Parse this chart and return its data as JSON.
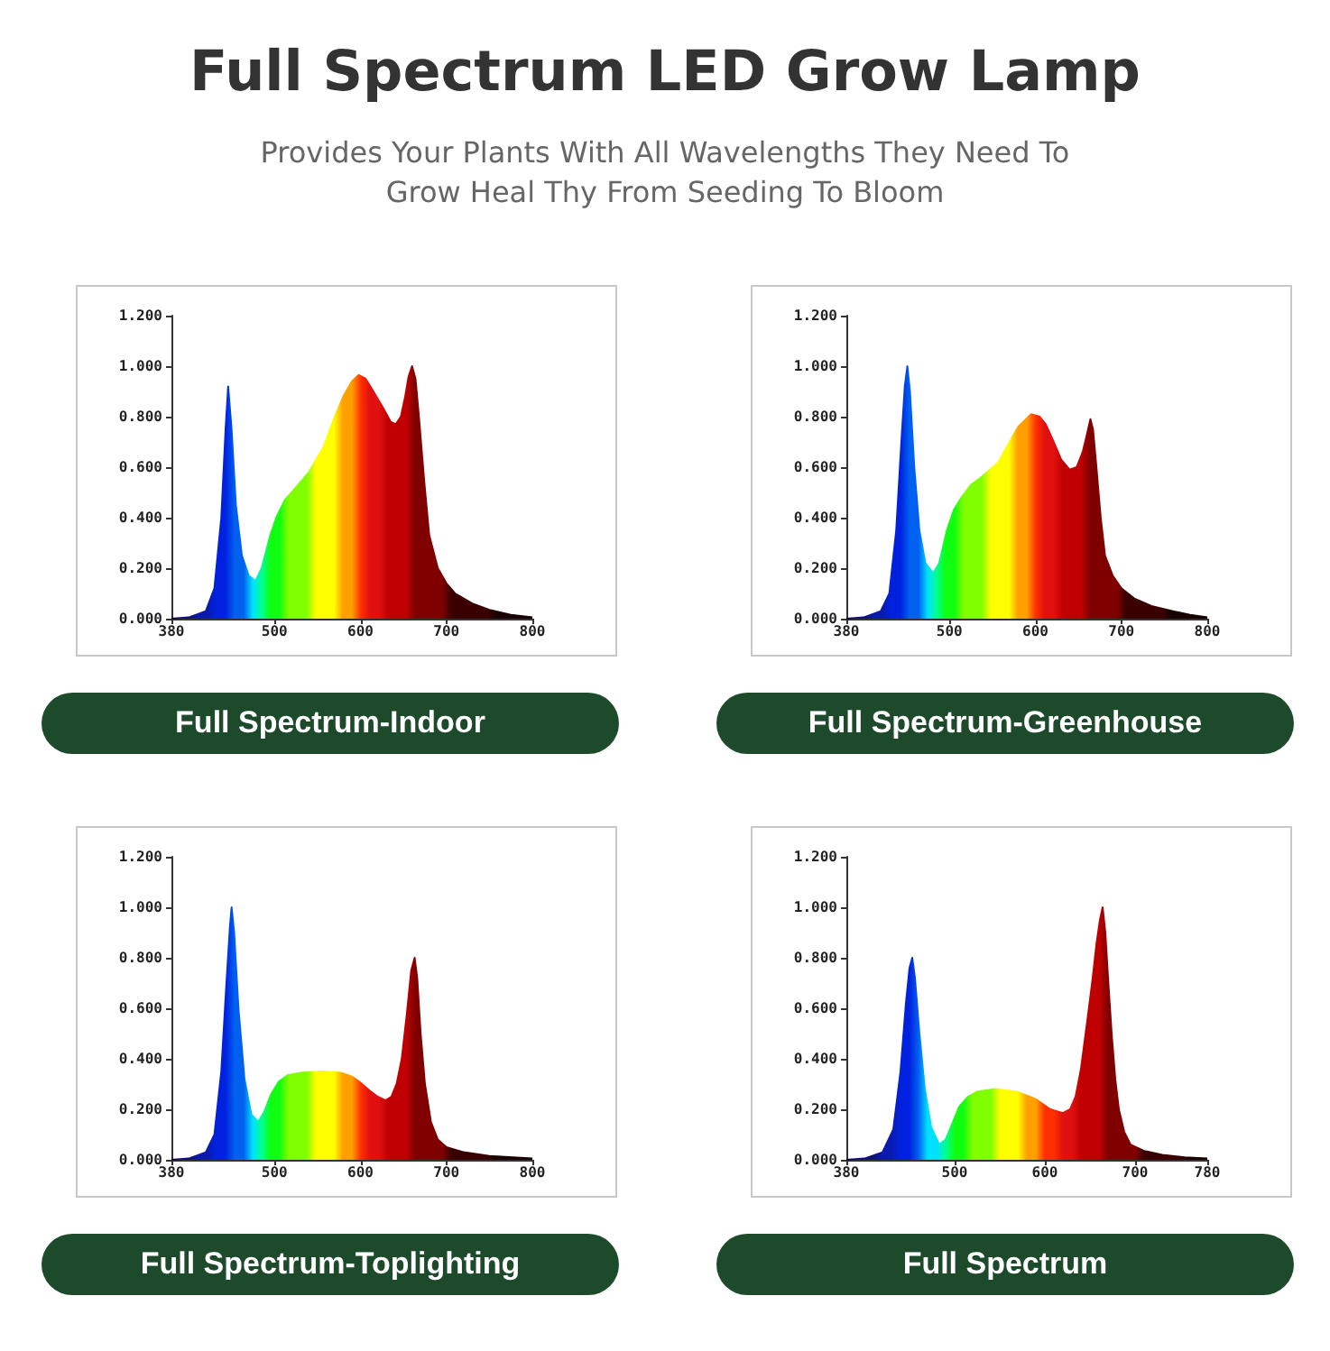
{
  "chart_data": [
    {
      "type": "area",
      "title": "Full Spectrum LED Grow Lamp",
      "subtitle": "Provides Your Plants With All Wavelengths They Need To Grow Heal Thy From Seeding To Bloom",
      "annotations": [
        "Full Spectrum-Indoor"
      ],
      "grid": false,
      "xlim": [
        380,
        800
      ],
      "xticks": [
        380,
        500,
        600,
        700,
        800
      ],
      "ylim": [
        0,
        1.2
      ],
      "yticks": [
        {
          "value": 0,
          "label": "0.000"
        },
        {
          "value": 0.2,
          "label": "0.200"
        },
        {
          "value": 0.4,
          "label": "0.400"
        },
        {
          "value": 0.6,
          "label": "0.600"
        },
        {
          "value": 0.8,
          "label": "0.800"
        },
        {
          "value": 1,
          "label": "1.000"
        },
        {
          "value": 1.2,
          "label": "1.200"
        }
      ],
      "x": [
        380,
        400,
        420,
        430,
        438,
        443,
        446,
        450,
        455,
        462,
        470,
        478,
        485,
        495,
        502,
        512,
        525,
        540,
        557,
        570,
        580,
        590,
        598,
        606,
        615,
        627,
        635,
        641,
        647,
        652,
        656,
        660,
        664,
        668,
        674,
        680,
        690,
        700,
        710,
        730,
        750,
        775,
        800
      ],
      "values": [
        0,
        0.005,
        0.03,
        0.12,
        0.4,
        0.75,
        0.92,
        0.75,
        0.45,
        0.25,
        0.17,
        0.15,
        0.2,
        0.33,
        0.4,
        0.47,
        0.52,
        0.58,
        0.68,
        0.8,
        0.88,
        0.94,
        0.965,
        0.95,
        0.9,
        0.83,
        0.78,
        0.77,
        0.8,
        0.88,
        0.96,
        1.0,
        0.95,
        0.8,
        0.55,
        0.33,
        0.2,
        0.14,
        0.1,
        0.06,
        0.035,
        0.015,
        0.005
      ]
    },
    {
      "type": "area",
      "annotations": [
        "Full Spectrum-Greenhouse"
      ],
      "grid": false,
      "xlim": [
        380,
        800
      ],
      "xticks": [
        380,
        500,
        600,
        700,
        800
      ],
      "ylim": [
        0,
        1.2
      ],
      "yticks": [
        {
          "value": 0,
          "label": "0.000"
        },
        {
          "value": 0.2,
          "label": "0.200"
        },
        {
          "value": 0.4,
          "label": "0.400"
        },
        {
          "value": 0.6,
          "label": "0.600"
        },
        {
          "value": 0.8,
          "label": "0.800"
        },
        {
          "value": 1,
          "label": "1.000"
        },
        {
          "value": 1.2,
          "label": "1.200"
        }
      ],
      "x": [
        380,
        400,
        420,
        430,
        438,
        444,
        448,
        451,
        454,
        459,
        465,
        472,
        481,
        488,
        497,
        505,
        512,
        525,
        537,
        557,
        570,
        580,
        595,
        605,
        612,
        620,
        630,
        640,
        648,
        655,
        660,
        664,
        667,
        671,
        676,
        681,
        690,
        700,
        715,
        735,
        760,
        780,
        800
      ],
      "values": [
        0,
        0.005,
        0.03,
        0.1,
        0.35,
        0.7,
        0.92,
        1.0,
        0.9,
        0.6,
        0.35,
        0.22,
        0.18,
        0.22,
        0.35,
        0.43,
        0.47,
        0.53,
        0.56,
        0.62,
        0.7,
        0.76,
        0.81,
        0.8,
        0.77,
        0.71,
        0.63,
        0.59,
        0.6,
        0.66,
        0.73,
        0.79,
        0.75,
        0.6,
        0.4,
        0.25,
        0.17,
        0.12,
        0.08,
        0.05,
        0.03,
        0.015,
        0.005
      ]
    },
    {
      "type": "area",
      "annotations": [
        "Full Spectrum-Toplighting"
      ],
      "grid": false,
      "xlim": [
        380,
        800
      ],
      "xticks": [
        380,
        500,
        600,
        700,
        800
      ],
      "ylim": [
        0,
        1.2
      ],
      "yticks": [
        {
          "value": 0,
          "label": "0.000"
        },
        {
          "value": 0.2,
          "label": "0.200"
        },
        {
          "value": 0.4,
          "label": "0.400"
        },
        {
          "value": 0.6,
          "label": "0.600"
        },
        {
          "value": 0.8,
          "label": "0.800"
        },
        {
          "value": 1,
          "label": "1.000"
        },
        {
          "value": 1.2,
          "label": "1.200"
        }
      ],
      "x": [
        380,
        400,
        420,
        430,
        438,
        444,
        448,
        450,
        453,
        458,
        465,
        473,
        481,
        488,
        496,
        505,
        515,
        530,
        556,
        577,
        590,
        600,
        612,
        620,
        629,
        636,
        642,
        648,
        654,
        659,
        663,
        666,
        670,
        675,
        682,
        690,
        700,
        720,
        750,
        800
      ],
      "values": [
        0,
        0.005,
        0.03,
        0.1,
        0.35,
        0.7,
        0.92,
        1.0,
        0.9,
        0.6,
        0.32,
        0.18,
        0.15,
        0.19,
        0.26,
        0.31,
        0.335,
        0.345,
        0.35,
        0.345,
        0.33,
        0.305,
        0.27,
        0.25,
        0.235,
        0.25,
        0.3,
        0.4,
        0.58,
        0.75,
        0.8,
        0.72,
        0.5,
        0.3,
        0.15,
        0.08,
        0.05,
        0.03,
        0.015,
        0.005
      ]
    },
    {
      "type": "area",
      "annotations": [
        "Full Spectrum"
      ],
      "grid": false,
      "xlim": [
        380,
        780
      ],
      "xticks": [
        380,
        500,
        600,
        700,
        780
      ],
      "ylim": [
        0,
        1.2
      ],
      "yticks": [
        {
          "value": 0,
          "label": "0.000"
        },
        {
          "value": 0.2,
          "label": "0.200"
        },
        {
          "value": 0.4,
          "label": "0.400"
        },
        {
          "value": 0.6,
          "label": "0.600"
        },
        {
          "value": 0.8,
          "label": "0.800"
        },
        {
          "value": 1,
          "label": "1.000"
        },
        {
          "value": 1.2,
          "label": "1.200"
        }
      ],
      "x": [
        380,
        400,
        420,
        432,
        440,
        446,
        450,
        453,
        456,
        461,
        467,
        474,
        483,
        490,
        497,
        505,
        515,
        525,
        545,
        569,
        590,
        606,
        620,
        628,
        634,
        640,
        647,
        653,
        657,
        661,
        664,
        667,
        670,
        674,
        678,
        682,
        688,
        695,
        710,
        730,
        755,
        780
      ],
      "values": [
        0,
        0.005,
        0.03,
        0.12,
        0.35,
        0.62,
        0.76,
        0.8,
        0.72,
        0.5,
        0.28,
        0.13,
        0.06,
        0.08,
        0.14,
        0.21,
        0.25,
        0.27,
        0.28,
        0.27,
        0.24,
        0.2,
        0.185,
        0.2,
        0.25,
        0.36,
        0.55,
        0.72,
        0.85,
        0.95,
        1.0,
        0.9,
        0.72,
        0.5,
        0.32,
        0.2,
        0.11,
        0.06,
        0.035,
        0.02,
        0.01,
        0.005
      ]
    }
  ]
}
